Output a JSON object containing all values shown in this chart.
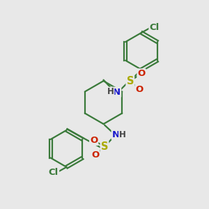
{
  "background_color": "#e8e8e8",
  "atom_colors": {
    "C": "#3a7a3a",
    "N": "#1a1acc",
    "O": "#cc2200",
    "S": "#aaaa00",
    "Cl": "#3a7a3a",
    "H": "#444444"
  },
  "bond_color": "#3a7a3a",
  "line_width": 1.6,
  "font_size": 9.5,
  "figsize": [
    3.0,
    3.0
  ],
  "dpi": 100
}
